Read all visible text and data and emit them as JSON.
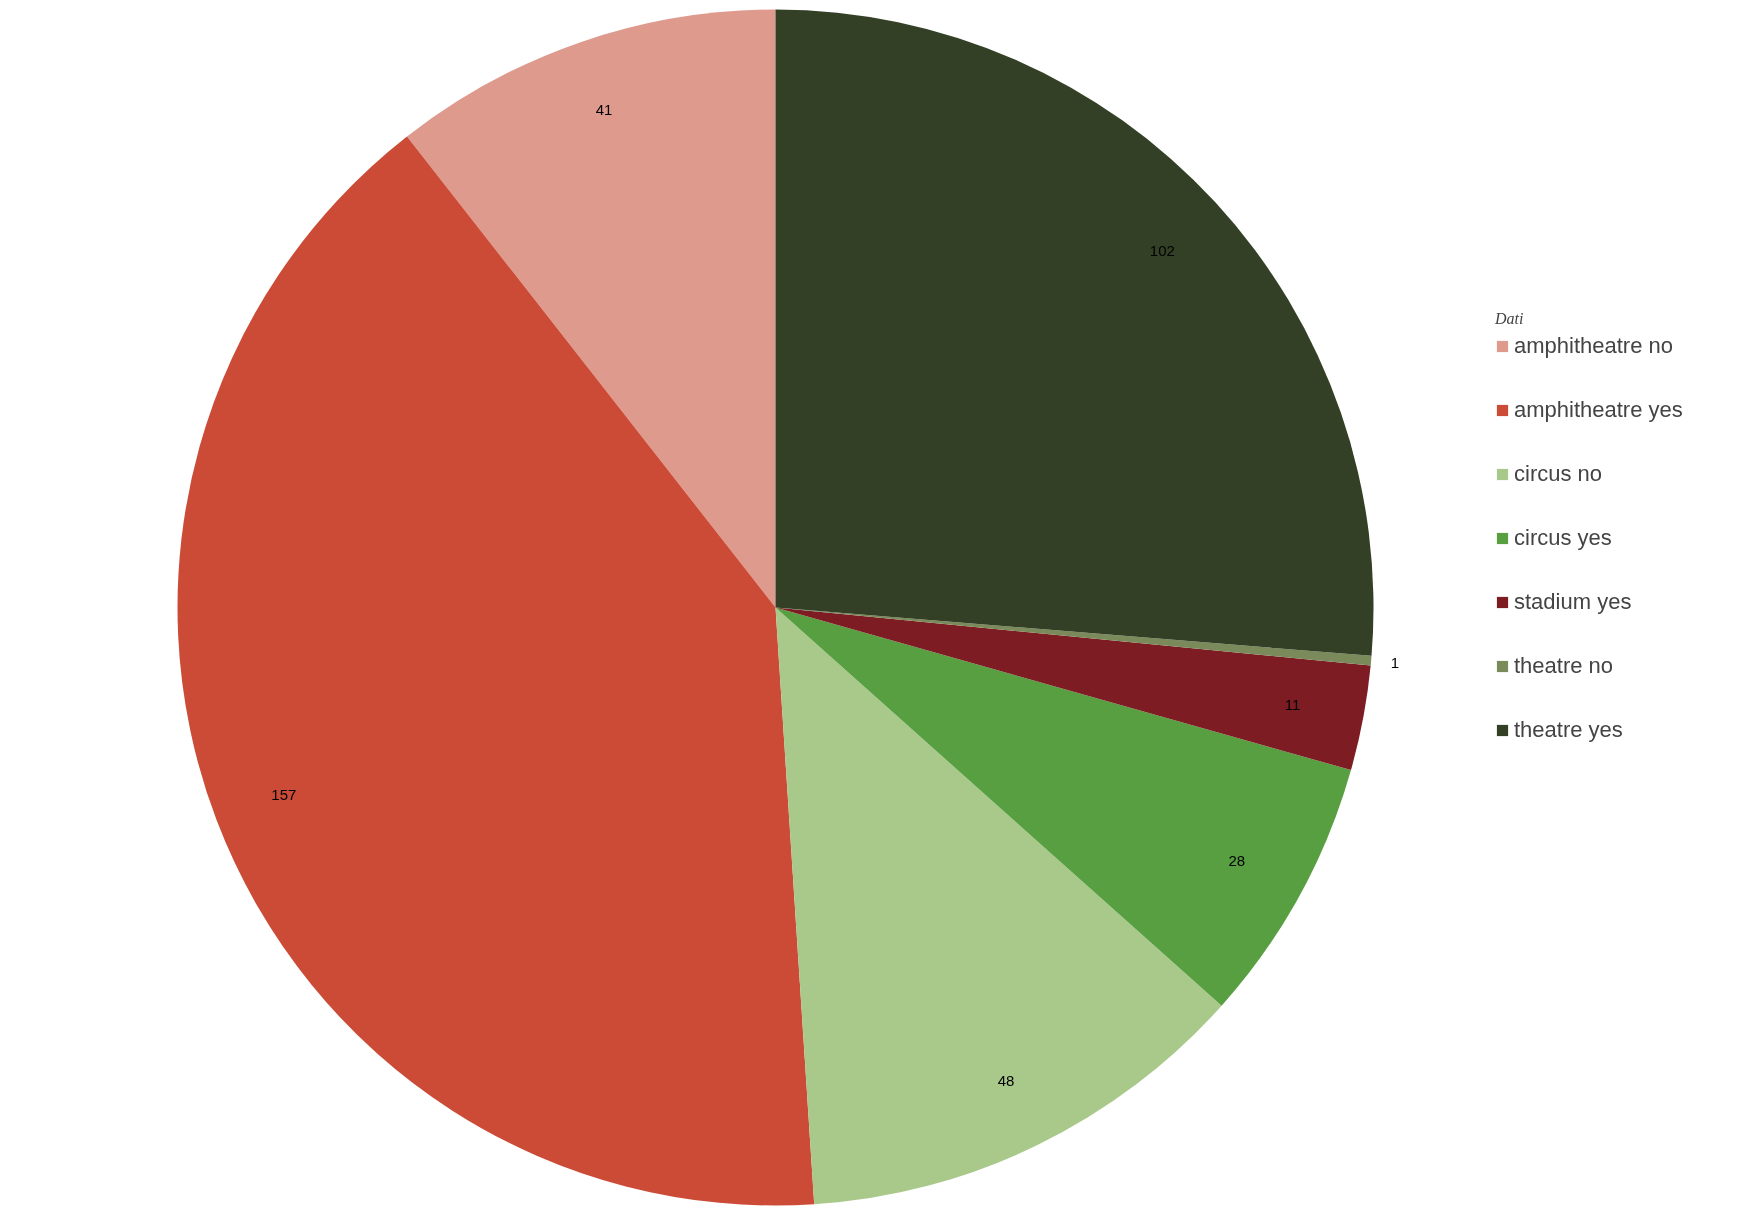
{
  "chart_data": {
    "type": "pie",
    "legend_title": "Dati",
    "legend": "right",
    "data_labels": true,
    "categories": [
      "amphitheatre no",
      "amphitheatre yes",
      "circus no",
      "circus yes",
      "stadium yes",
      "theatre no",
      "theatre yes"
    ],
    "values": [
      41,
      157,
      48,
      28,
      11,
      1,
      102
    ],
    "colors": [
      "#df9a8e",
      "#cb4b36",
      "#a9c98b",
      "#589f42",
      "#7d1d23",
      "#7b8a5a",
      "#334025"
    ]
  }
}
